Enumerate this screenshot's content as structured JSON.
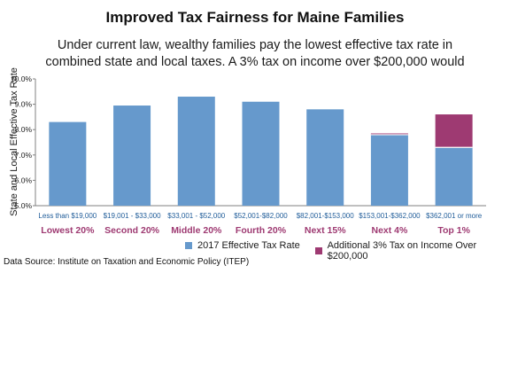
{
  "chart_data": {
    "type": "bar",
    "title": "Improved Tax Fairness for Maine Families",
    "subtitle_lines": [
      "Under current law, wealthy families pay the lowest effective tax rate in",
      "combined state and local taxes. A 3% tax on income over $200,000  would"
    ],
    "ylabel": "State  and Local Effective Tax Rate",
    "xlabel": "",
    "ylim": [
      5.0,
      10.0
    ],
    "yticks": [
      "5.0%",
      "6.0%",
      "7.0%",
      "8.0%",
      "9.0%",
      "10.0%"
    ],
    "ytick_values": [
      5.0,
      6.0,
      7.0,
      8.0,
      9.0,
      10.0
    ],
    "grid": false,
    "legend_position": "bottom",
    "categories": [
      "Less than $19,000",
      "$19,001 - $33,000",
      "$33,001 - $52,000",
      "$52,001-$82,000",
      "$82,001-$153,000",
      "$153,001-$362,000",
      "$362,001 or more"
    ],
    "group_labels": [
      "Lowest 20%",
      "Second 20%",
      "Middle 20%",
      "Fourth 20%",
      "Next 15%",
      "Next 4%",
      "Top 1%"
    ],
    "series": [
      {
        "name": "2017 Effective Tax Rate",
        "color": "#6699cc",
        "values": [
          8.3,
          8.95,
          9.3,
          9.1,
          8.8,
          7.8,
          7.3
        ]
      },
      {
        "name": "Additional 3% Tax on Income Over $200,000",
        "color": "#9e3a72",
        "values": [
          0,
          0,
          0,
          0,
          0,
          0.05,
          1.3
        ]
      }
    ],
    "source": "Data Source: Institute on Taxation and Economic Policy (ITEP)"
  },
  "colors": {
    "category_label": "#1f5c99",
    "group_label": "#9e3a72",
    "axis": "#808080"
  }
}
